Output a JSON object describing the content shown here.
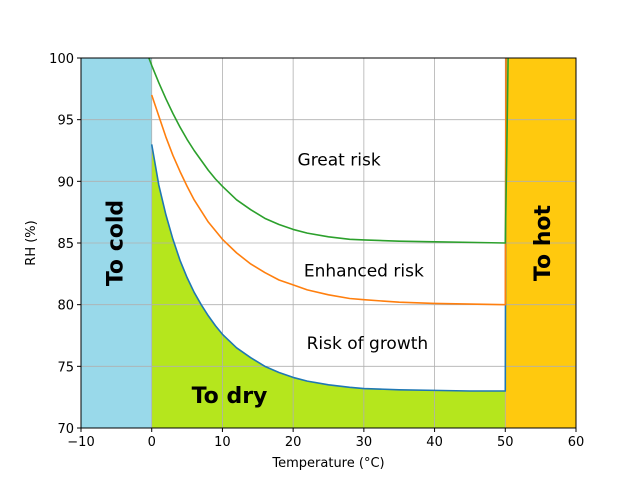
{
  "chart_data": {
    "type": "line",
    "xlabel": "Temperature (°C)",
    "ylabel": "RH (%)",
    "xlim": [
      -10,
      60
    ],
    "ylim": [
      70,
      100
    ],
    "xticks": [
      -10,
      0,
      10,
      20,
      30,
      40,
      50,
      60
    ],
    "yticks": [
      70,
      75,
      80,
      85,
      90,
      95,
      100
    ],
    "xtick_labels": [
      "−10",
      "0",
      "10",
      "20",
      "30",
      "40",
      "50",
      "60"
    ],
    "ytick_labels": [
      "70",
      "75",
      "80",
      "85",
      "90",
      "95",
      "100"
    ],
    "grid": true,
    "regions": [
      {
        "key": "cold",
        "label": "To cold",
        "color": "#99d9ea",
        "x_range": [
          -10,
          0
        ],
        "label_x": -5,
        "label_y": 85,
        "rotated": true
      },
      {
        "key": "hot",
        "label": "To hot",
        "color": "#ffc90e",
        "x_range": [
          50,
          60
        ],
        "label_x": 55.5,
        "label_y": 85,
        "rotated": true
      },
      {
        "key": "dry",
        "label": "To dry",
        "color": "#b5e61d",
        "below_series": "Risk of growth",
        "label_x": 11,
        "label_y": 72.5
      }
    ],
    "annotations": [
      {
        "text": "Great risk",
        "x": 26.5,
        "y": 91.7
      },
      {
        "text": "Enhanced risk",
        "x": 30,
        "y": 82.7
      },
      {
        "text": "Risk of growth",
        "x": 30.5,
        "y": 76.8
      }
    ],
    "series": [
      {
        "key": "low",
        "color": "#1f77b4",
        "x": [
          0,
          1,
          2,
          3,
          4,
          5,
          6,
          7,
          8,
          9,
          10,
          12,
          14,
          16,
          18,
          20,
          22,
          25,
          28,
          30,
          35,
          40,
          45,
          50,
          50.05,
          50.1
        ],
        "y": [
          93,
          89.7,
          87.3,
          85.3,
          83.6,
          82.2,
          81.0,
          80.0,
          79.1,
          78.3,
          77.6,
          76.5,
          75.7,
          75.0,
          74.5,
          74.1,
          73.8,
          73.5,
          73.3,
          73.2,
          73.1,
          73.05,
          73.0,
          73.0,
          85,
          100
        ]
      },
      {
        "key": "mid",
        "color": "#ff7f0e",
        "x": [
          0,
          1,
          2,
          3,
          4,
          5,
          6,
          7,
          8,
          9,
          10,
          12,
          14,
          16,
          18,
          20,
          22,
          25,
          28,
          30,
          35,
          40,
          45,
          50,
          50.05,
          50.1
        ],
        "y": [
          97,
          95.3,
          93.6,
          92.1,
          90.8,
          89.6,
          88.5,
          87.6,
          86.7,
          86.0,
          85.3,
          84.2,
          83.3,
          82.6,
          82.0,
          81.6,
          81.2,
          80.8,
          80.5,
          80.4,
          80.2,
          80.1,
          80.05,
          80.0,
          90,
          100
        ]
      },
      {
        "key": "high",
        "color": "#2ca02c",
        "x": [
          -0.4,
          0,
          1,
          2,
          3,
          4,
          5,
          6,
          7,
          8,
          9,
          10,
          12,
          14,
          16,
          18,
          20,
          22,
          25,
          28,
          30,
          35,
          40,
          45,
          50,
          50.2,
          50.4
        ],
        "y": [
          100,
          99.4,
          98.0,
          96.7,
          95.5,
          94.4,
          93.4,
          92.5,
          91.7,
          90.9,
          90.2,
          89.6,
          88.5,
          87.7,
          87.0,
          86.5,
          86.1,
          85.8,
          85.5,
          85.3,
          85.25,
          85.15,
          85.1,
          85.05,
          85.0,
          92,
          100
        ]
      }
    ]
  }
}
